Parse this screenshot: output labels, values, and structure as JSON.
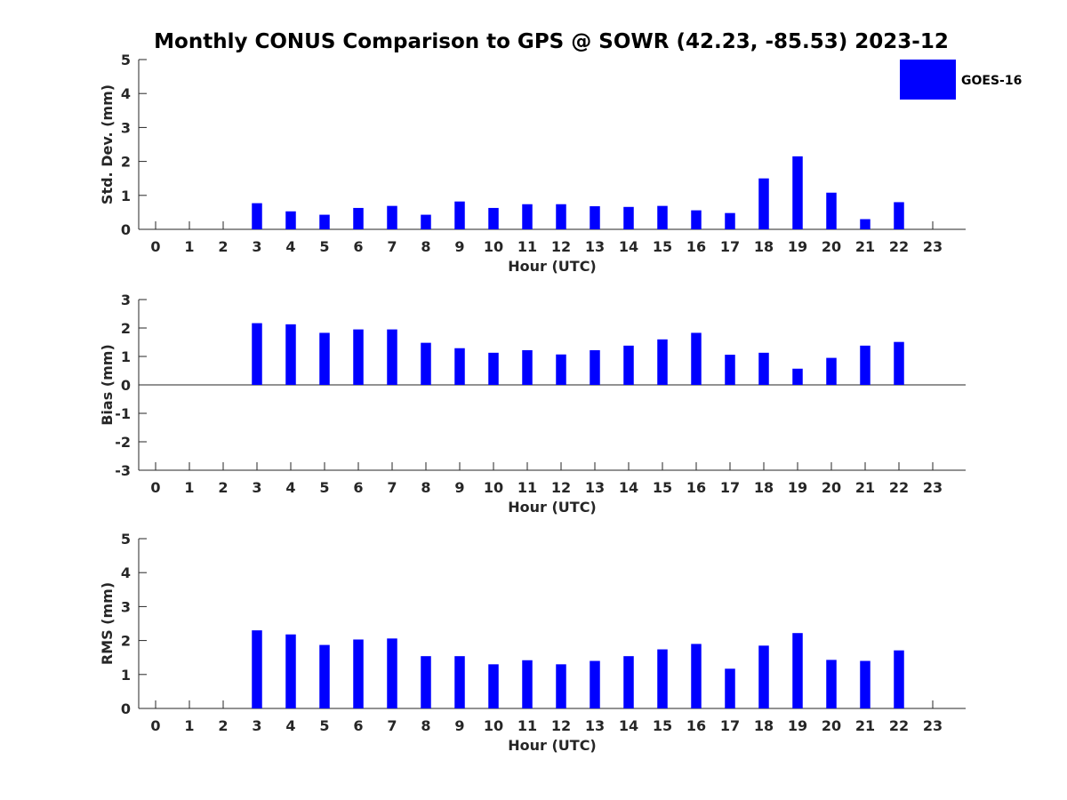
{
  "title": "Monthly CONUS Comparison to GPS @ SOWR (42.23, -85.53) 2023-12",
  "legend": {
    "label": "GOES-16",
    "color": "#0000ff",
    "placement": "top-right"
  },
  "chart_data": [
    {
      "type": "bar",
      "xlabel": "Hour (UTC)",
      "ylabel": "Std. Dev. (mm)",
      "ylim": [
        0,
        5
      ],
      "yticks": [
        "0",
        "1",
        "2",
        "3",
        "4",
        "5"
      ],
      "categories": [
        "0",
        "1",
        "2",
        "3",
        "4",
        "5",
        "6",
        "7",
        "8",
        "9",
        "10",
        "11",
        "12",
        "13",
        "14",
        "15",
        "16",
        "17",
        "18",
        "19",
        "20",
        "21",
        "22",
        "23"
      ],
      "series": [
        {
          "name": "GOES-16",
          "color": "#0000ff",
          "values": [
            null,
            null,
            null,
            0.77,
            0.53,
            0.43,
            0.63,
            0.69,
            0.43,
            0.82,
            0.63,
            0.74,
            0.74,
            0.68,
            0.66,
            0.69,
            0.56,
            0.48,
            1.5,
            2.15,
            1.08,
            0.3,
            0.8,
            null
          ]
        }
      ]
    },
    {
      "type": "bar",
      "xlabel": "Hour (UTC)",
      "ylabel": "Bias (mm)",
      "ylim": [
        -3,
        3
      ],
      "yticks": [
        "-3",
        "-2",
        "-1",
        "0",
        "1",
        "2",
        "3"
      ],
      "zero_line": true,
      "categories": [
        "0",
        "1",
        "2",
        "3",
        "4",
        "5",
        "6",
        "7",
        "8",
        "9",
        "10",
        "11",
        "12",
        "13",
        "14",
        "15",
        "16",
        "17",
        "18",
        "19",
        "20",
        "21",
        "22",
        "23"
      ],
      "series": [
        {
          "name": "GOES-16",
          "color": "#0000ff",
          "values": [
            null,
            null,
            null,
            2.17,
            2.13,
            1.83,
            1.95,
            1.95,
            1.48,
            1.29,
            1.13,
            1.22,
            1.07,
            1.22,
            1.38,
            1.6,
            1.83,
            1.06,
            1.13,
            0.57,
            0.95,
            1.38,
            1.51,
            null
          ]
        }
      ]
    },
    {
      "type": "bar",
      "xlabel": "Hour (UTC)",
      "ylabel": "RMS (mm)",
      "ylim": [
        0,
        5
      ],
      "yticks": [
        "0",
        "1",
        "2",
        "3",
        "4",
        "5"
      ],
      "categories": [
        "0",
        "1",
        "2",
        "3",
        "4",
        "5",
        "6",
        "7",
        "8",
        "9",
        "10",
        "11",
        "12",
        "13",
        "14",
        "15",
        "16",
        "17",
        "18",
        "19",
        "20",
        "21",
        "22",
        "23"
      ],
      "series": [
        {
          "name": "GOES-16",
          "color": "#0000ff",
          "values": [
            null,
            null,
            null,
            2.3,
            2.18,
            1.87,
            2.03,
            2.06,
            1.54,
            1.54,
            1.3,
            1.42,
            1.3,
            1.4,
            1.54,
            1.74,
            1.9,
            1.17,
            1.85,
            2.22,
            1.43,
            1.4,
            1.71,
            null
          ]
        }
      ]
    }
  ]
}
